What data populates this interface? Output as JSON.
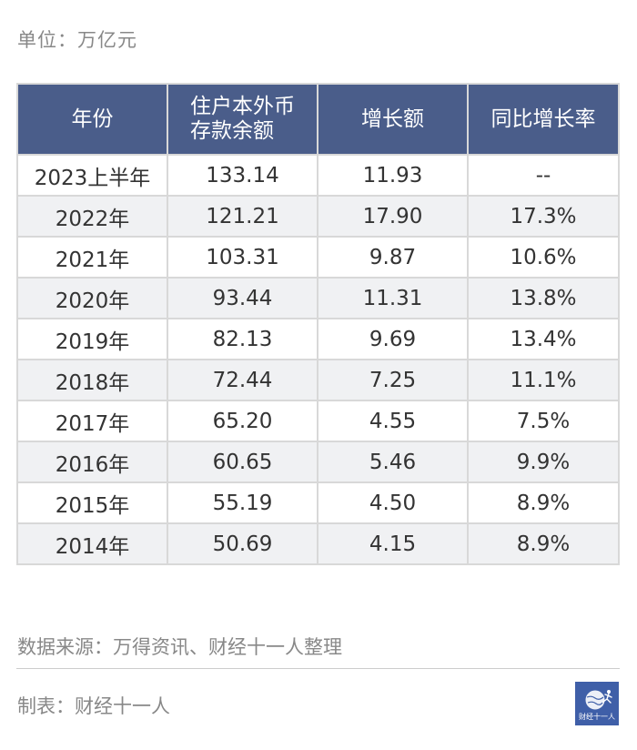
{
  "unit_label": "单位：万亿元",
  "table": {
    "headers": [
      "年份",
      "住户本外币\n存款余额",
      "增长额",
      "同比增长率"
    ],
    "header_lines": {
      "balance_line1": "住户本外币",
      "balance_line2": "存款余额"
    },
    "rows": [
      [
        "2023上半年",
        "133.14",
        "11.93",
        "--"
      ],
      [
        "2022年",
        "121.21",
        "17.90",
        "17.3%"
      ],
      [
        "2021年",
        "103.31",
        "9.87",
        "10.6%"
      ],
      [
        "2020年",
        "93.44",
        "11.31",
        "13.8%"
      ],
      [
        "2019年",
        "82.13",
        "9.69",
        "13.4%"
      ],
      [
        "2018年",
        "72.44",
        "7.25",
        "11.1%"
      ],
      [
        "2017年",
        "65.20",
        "4.55",
        "7.5%"
      ],
      [
        "2016年",
        "60.65",
        "5.46",
        "9.9%"
      ],
      [
        "2015年",
        "55.19",
        "4.50",
        "8.9%"
      ],
      [
        "2014年",
        "50.69",
        "4.15",
        "8.9%"
      ]
    ]
  },
  "chart_data": {
    "type": "table",
    "columns": [
      "年份",
      "住户本外币存款余额",
      "增长额",
      "同比增长率"
    ],
    "rows": [
      [
        "2023上半年",
        133.14,
        11.93,
        "--"
      ],
      [
        "2022年",
        121.21,
        17.9,
        "17.3%"
      ],
      [
        "2021年",
        103.31,
        9.87,
        "10.6%"
      ],
      [
        "2020年",
        93.44,
        11.31,
        "13.8%"
      ],
      [
        "2019年",
        82.13,
        9.69,
        "13.4%"
      ],
      [
        "2018年",
        72.44,
        7.25,
        "11.1%"
      ],
      [
        "2017年",
        65.2,
        4.55,
        "7.5%"
      ],
      [
        "2016年",
        60.65,
        5.46,
        "9.9%"
      ],
      [
        "2015年",
        55.19,
        4.5,
        "8.9%"
      ],
      [
        "2014年",
        50.69,
        4.15,
        "8.9%"
      ]
    ]
  },
  "source_label": "数据来源：万得资讯、财经十一人整理",
  "maker_label": "制表：财经十一人",
  "logo": {
    "icon": "globe-runner-logo-icon",
    "text": "财经十一人"
  },
  "colors": {
    "header_bg": "#4a5d8a",
    "stripe_bg": "#f0f1f3",
    "logo_bg": "#3f5fa8"
  }
}
